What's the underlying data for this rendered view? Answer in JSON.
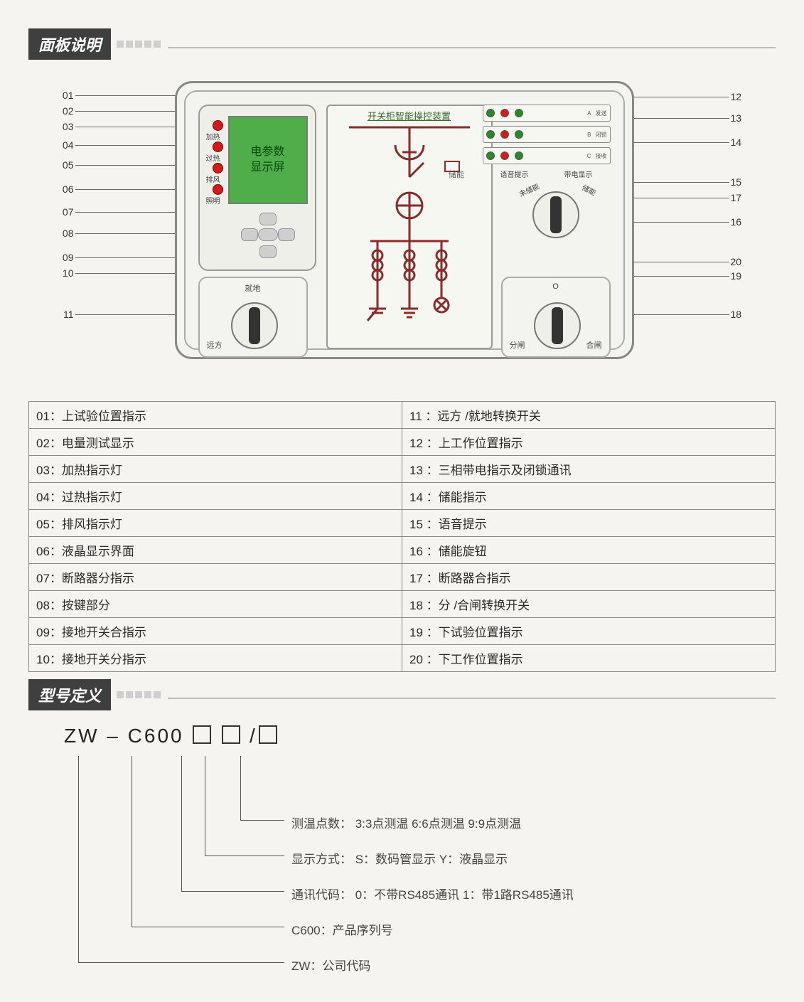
{
  "sections": {
    "panel_title": "面板说明",
    "model_title": "型号定义"
  },
  "panel": {
    "device_title": "开关柜智能操控装置",
    "lcd_line1": "电参数",
    "lcd_line2": "显示屏",
    "led_labels": [
      "加热",
      "过热",
      "排风",
      "照明"
    ],
    "storage_label": "储能",
    "voice_label": "语音提示",
    "live_label": "带电显示",
    "phases": [
      {
        "ph": "A",
        "tx": "发送"
      },
      {
        "ph": "B",
        "tx": "闭锁"
      },
      {
        "ph": "C",
        "tx": "接收"
      }
    ],
    "knob_left": {
      "title": "就地",
      "l": "远方",
      "r": ""
    },
    "knob_right": {
      "title": "O",
      "l": "分闸",
      "r": "合闸"
    },
    "storage_knob": {
      "l": "未储能",
      "r": "储能"
    }
  },
  "table": [
    {
      "n": "01",
      "t": "上试验位置指示"
    },
    {
      "n": "02",
      "t": "电量测试显示"
    },
    {
      "n": "03",
      "t": "加热指示灯"
    },
    {
      "n": "04",
      "t": "过热指示灯"
    },
    {
      "n": "05",
      "t": "排风指示灯"
    },
    {
      "n": "06",
      "t": "液晶显示界面"
    },
    {
      "n": "07",
      "t": "断路器分指示"
    },
    {
      "n": "08",
      "t": "按键部分"
    },
    {
      "n": "09",
      "t": "接地开关合指示"
    },
    {
      "n": "10",
      "t": "接地开关分指示"
    },
    {
      "n": "11",
      "t": "远方 /就地转换开关"
    },
    {
      "n": "12",
      "t": "上工作位置指示"
    },
    {
      "n": "13",
      "t": "三相带电指示及闭锁通讯"
    },
    {
      "n": "14",
      "t": "储能指示"
    },
    {
      "n": "15",
      "t": "语音提示"
    },
    {
      "n": "16",
      "t": "储能旋钮"
    },
    {
      "n": "17",
      "t": "断路器合指示"
    },
    {
      "n": "18",
      "t": "分 /合闸转换开关"
    },
    {
      "n": "19",
      "t": "下试验位置指示"
    },
    {
      "n": "20",
      "t": "下工作位置指示"
    }
  ],
  "callouts_left": [
    "01",
    "02",
    "03",
    "04",
    "05",
    "06",
    "07",
    "08",
    "09",
    "10",
    "11"
  ],
  "callouts_right": [
    "12",
    "13",
    "14",
    "15",
    "17",
    "16",
    "20",
    "19",
    "18"
  ],
  "model": {
    "code_prefix": "ZW – C600",
    "lines": [
      "测温点数：  3:3点测温    6:6点测温    9:9点测温",
      "显示方式：  S：数码管显示     Y：液晶显示",
      "通讯代码：  0：不带RS485通讯  1：带1路RS485通讯",
      "C600：产品序列号",
      "ZW：公司代码"
    ]
  },
  "colors": {
    "led": "#d21c1c",
    "screen": "#4fad4a",
    "title_bg": "#3f3f3f",
    "border": "#888"
  }
}
